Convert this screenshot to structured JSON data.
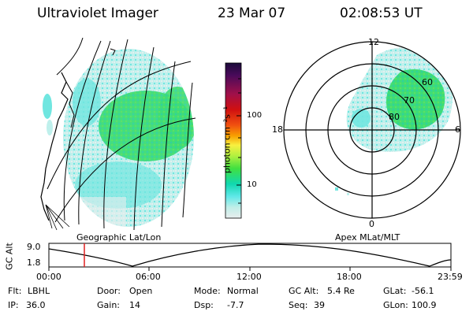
{
  "header": {
    "instrument": "Ultraviolet Imager",
    "date": "23 Mar 07",
    "time": "02:08:53 UT"
  },
  "colorbar": {
    "unit_label": "photon cm⁻²s⁻¹",
    "ticks": [
      "100",
      "10"
    ],
    "colors": [
      "#1a0a3a",
      "#4a0a5a",
      "#a0104a",
      "#d01010",
      "#f05010",
      "#f8a000",
      "#f8f040",
      "#b0f040",
      "#40e040",
      "#10d8b0",
      "#60e8e8",
      "#c0eee8",
      "#e8eeee"
    ]
  },
  "geographic_panel": {
    "label": "Geographic Lat/Lon"
  },
  "polar_panel": {
    "label": "Apex MLat/MLT",
    "mlt_labels": {
      "top": "12",
      "left": "18",
      "right": "6",
      "bottom": "0"
    },
    "lat_labels": [
      "80",
      "70",
      "60"
    ]
  },
  "altitude_plot": {
    "ylabel": "GC Alt",
    "ytick_top": "9.0",
    "ytick_bottom": "1.8",
    "xticks": [
      "00:00",
      "06:00",
      "12:00",
      "18:00",
      "23:59"
    ],
    "marker_time": "02:08",
    "marker_color": "#e02020"
  },
  "status": {
    "row1": [
      {
        "label": "Flt:",
        "value": "LBHL"
      },
      {
        "label": "Door:",
        "value": "Open"
      },
      {
        "label": "Mode:",
        "value": "Normal"
      },
      {
        "label": "GC Alt:",
        "value": "5.4 Re"
      },
      {
        "label": "GLat:",
        "value": "-56.1"
      }
    ],
    "row2": [
      {
        "label": "IP:",
        "value": "36.0"
      },
      {
        "label": "Gain:",
        "value": "14"
      },
      {
        "label": "Dsp:",
        "value": "-7.7"
      },
      {
        "label": "Seq:",
        "value": "39"
      },
      {
        "label": "GLon:",
        "value": "100.9"
      }
    ]
  }
}
